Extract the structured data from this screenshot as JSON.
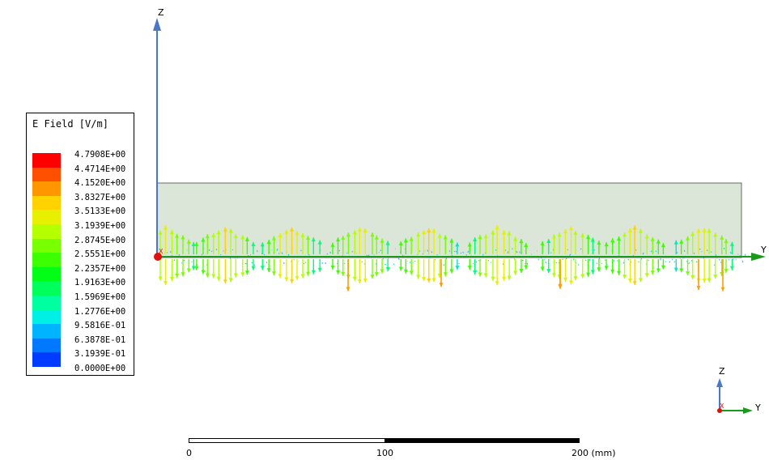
{
  "legend": {
    "title": "E Field [V/m]",
    "labels": [
      "4.7908E+00",
      "4.4714E+00",
      "4.1520E+00",
      "3.8327E+00",
      "3.5133E+00",
      "3.1939E+00",
      "2.8745E+00",
      "2.5551E+00",
      "2.2357E+00",
      "1.9163E+00",
      "1.5969E+00",
      "1.2776E+00",
      "9.5816E-01",
      "6.3878E-01",
      "3.1939E-01",
      "0.0000E+00"
    ],
    "colors": [
      "#ff0000",
      "#ff5000",
      "#ff9600",
      "#ffd200",
      "#e6f000",
      "#b4ff00",
      "#78ff00",
      "#3cff00",
      "#00ff14",
      "#00ff5a",
      "#00ffa0",
      "#00f0e6",
      "#00b4ff",
      "#0078ff",
      "#003cff",
      "#0000ff"
    ]
  },
  "axes": {
    "main_z_label": "Z",
    "main_y_label": "Y",
    "triad_z_label": "Z",
    "triad_y_label": "Y",
    "triad_x_label": "X",
    "origin_x_label": "X",
    "z_axis_color": "#4a78c8",
    "y_axis_color": "#1a9a1a",
    "x_axis_color": "#e01010"
  },
  "scale_bar": {
    "ticks": [
      "0",
      "100",
      "200 (mm)"
    ]
  },
  "model": {
    "fill_color": "#dbe5d8",
    "edge_color": "#607060"
  }
}
